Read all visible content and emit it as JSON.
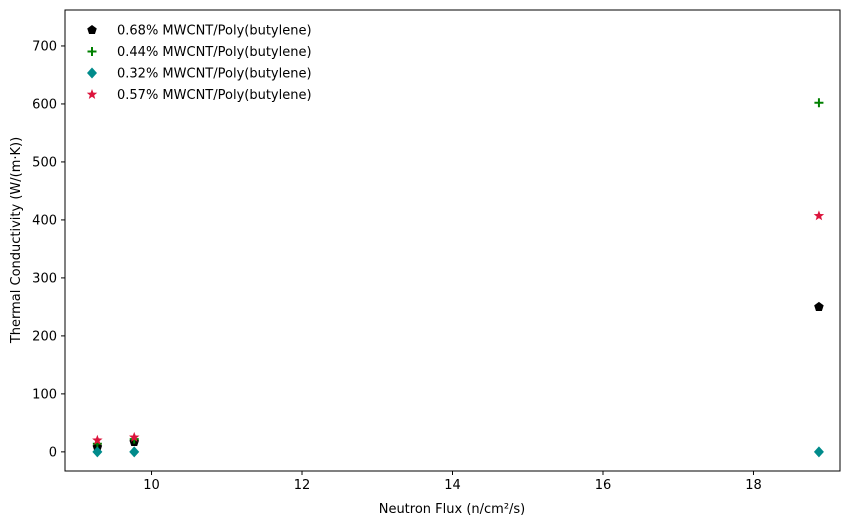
{
  "chart_data": {
    "type": "scatter",
    "xlabel": "Neutron Flux (n/cm²/s)",
    "ylabel": "Thermal Conductivity (W/(m·K))",
    "xlim": [
      8.85,
      19.15
    ],
    "ylim": [
      -33,
      762
    ],
    "xticks": [
      10,
      12,
      14,
      16,
      18
    ],
    "yticks": [
      0,
      100,
      200,
      300,
      400,
      500,
      600,
      700
    ],
    "grid": false,
    "legend_position": "upper-left",
    "series": [
      {
        "name": "0.68% MWCNT/Poly(butylene)",
        "marker": "pentagon",
        "color": "#000000",
        "points": [
          [
            9.28,
            8
          ],
          [
            9.77,
            17
          ],
          [
            18.87,
            250
          ]
        ]
      },
      {
        "name": "0.44% MWCNT/Poly(butylene)",
        "marker": "plus",
        "color": "#008000",
        "points": [
          [
            9.28,
            14
          ],
          [
            9.77,
            22
          ],
          [
            18.87,
            602
          ]
        ]
      },
      {
        "name": "0.32% MWCNT/Poly(butylene)",
        "marker": "diamond",
        "color": "#008b8b",
        "points": [
          [
            9.28,
            0
          ],
          [
            9.77,
            0
          ],
          [
            18.87,
            0
          ]
        ]
      },
      {
        "name": "0.57% MWCNT/Poly(butylene)",
        "marker": "star",
        "color": "#dc143c",
        "points": [
          [
            9.28,
            20
          ],
          [
            9.77,
            25
          ],
          [
            18.87,
            407
          ]
        ]
      }
    ]
  }
}
